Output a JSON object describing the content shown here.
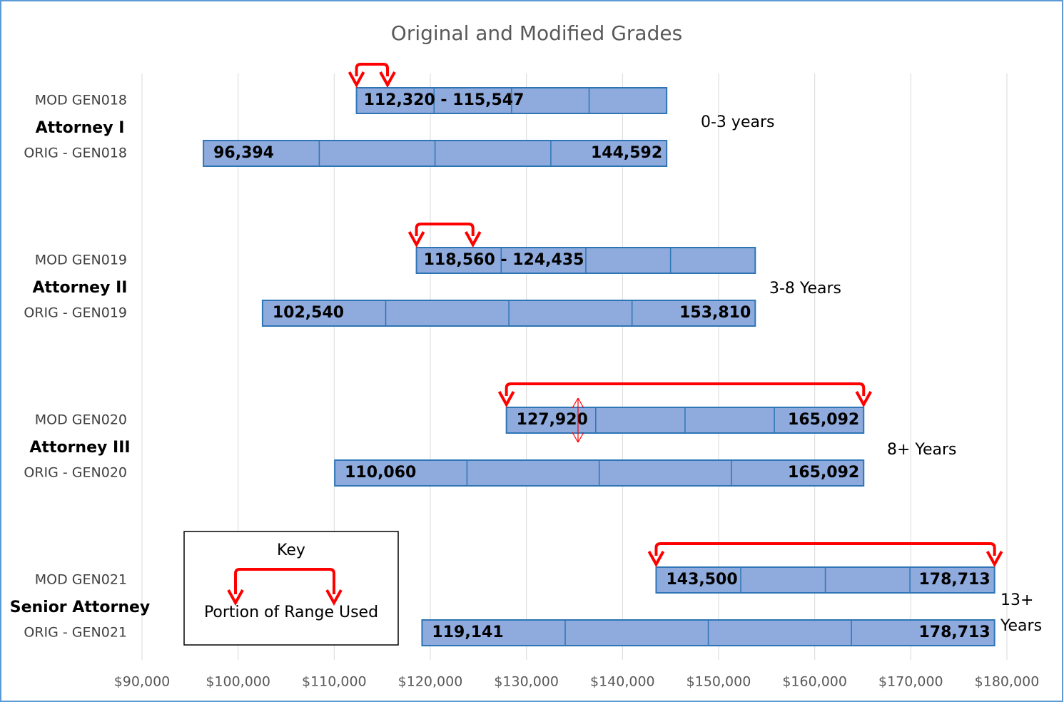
{
  "chart_data": {
    "type": "range_bar",
    "title": "Original and Modified Grades",
    "xlim": [
      90000,
      180000
    ],
    "xticks": [
      {
        "value": 90000,
        "label": "$90,000"
      },
      {
        "value": 100000,
        "label": "$100,000"
      },
      {
        "value": 110000,
        "label": "$110,000"
      },
      {
        "value": 120000,
        "label": "$120,000"
      },
      {
        "value": 130000,
        "label": "$130,000"
      },
      {
        "value": 140000,
        "label": "$140,000"
      },
      {
        "value": 150000,
        "label": "$150,000"
      },
      {
        "value": 160000,
        "label": "$160,000"
      },
      {
        "value": 170000,
        "label": "$170,000"
      },
      {
        "value": 180000,
        "label": "$180,000"
      }
    ],
    "grid": true,
    "bar_color": "#8faadc",
    "bar_edge_color": "#2e75b6",
    "arrow_color": "#ff0000",
    "groups": [
      {
        "name": "Attorney I",
        "tenure": "0-3 years",
        "bars": [
          {
            "name": "MOD GEN018",
            "values": [
              112320,
              144592
            ],
            "range_label": "112,320 - 115,547",
            "used": [
              112320,
              115547
            ]
          },
          {
            "name": "ORIG - GEN018",
            "values": [
              96394,
              144592
            ],
            "value_labels": [
              "96,394",
              "144,592"
            ]
          }
        ]
      },
      {
        "name": "Attorney II",
        "tenure": "3-8 Years",
        "bars": [
          {
            "name": "MOD GEN019",
            "values": [
              118560,
              153810
            ],
            "range_label": "118,560 - 124,435",
            "used": [
              118560,
              124435
            ]
          },
          {
            "name": "ORIG - GEN019",
            "values": [
              102540,
              153810
            ],
            "value_labels": [
              "102,540",
              "153,810"
            ]
          }
        ]
      },
      {
        "name": "Attorney III",
        "tenure": "8+ Years",
        "bars": [
          {
            "name": "MOD GEN020",
            "values": [
              127920,
              165092
            ],
            "value_labels": [
              "127,920",
              "165,092"
            ],
            "used": [
              127920,
              165092
            ]
          },
          {
            "name": "ORIG - GEN020",
            "values": [
              110060,
              165092
            ],
            "value_labels": [
              "110,060",
              "165,092"
            ]
          }
        ]
      },
      {
        "name": "Senior Attorney",
        "tenure": "13+ Years",
        "bars": [
          {
            "name": "MOD GEN021",
            "values": [
              143500,
              178713
            ],
            "value_labels": [
              "143,500",
              "178,713"
            ],
            "used": [
              143500,
              178713
            ]
          },
          {
            "name": "ORIG - GEN021",
            "values": [
              119141,
              178713
            ],
            "value_labels": [
              "119,141",
              "178,713"
            ]
          }
        ]
      }
    ],
    "key": {
      "title": "Key",
      "label": "Portion of Range Used"
    }
  }
}
